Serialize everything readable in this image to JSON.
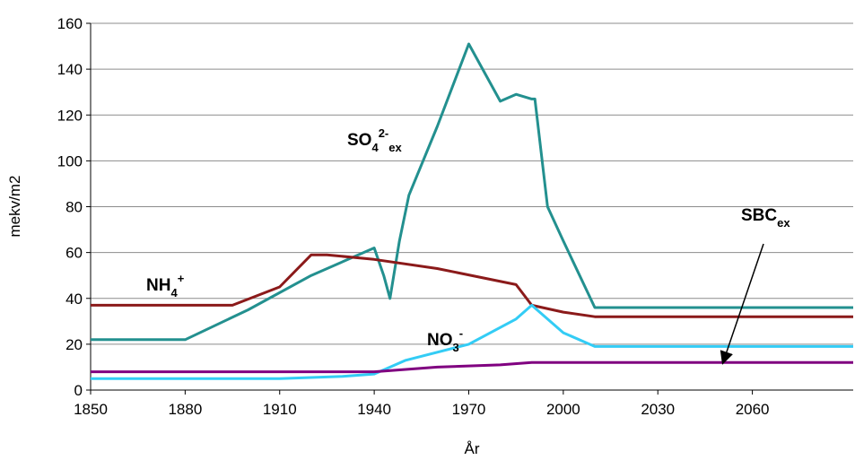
{
  "chart_data": {
    "type": "line",
    "ylabel": "mekv/m2",
    "xlabel": "År",
    "xlim": [
      1850,
      2092
    ],
    "ylim": [
      0,
      160
    ],
    "xticks": [
      1850,
      1880,
      1910,
      1940,
      1970,
      2000,
      2030,
      2060
    ],
    "yticks": [
      0,
      20,
      40,
      60,
      80,
      100,
      120,
      140,
      160
    ],
    "grid": true,
    "series": [
      {
        "label_parts": [
          {
            "text": "SO"
          },
          {
            "text": "4",
            "style": "sub"
          },
          {
            "text": "2-",
            "style": "sup"
          },
          {
            "text": "ex",
            "style": "sub"
          }
        ],
        "color": "#23908f",
        "x": [
          1850,
          1880,
          1900,
          1920,
          1940,
          1943,
          1945,
          1948,
          1951,
          1960,
          1970,
          1980,
          1985,
          1990,
          1991,
          1995,
          2000,
          2010,
          2092
        ],
        "values": [
          22,
          22,
          35,
          50,
          62,
          50,
          40,
          65,
          85,
          115,
          151,
          126,
          129,
          127,
          127,
          80,
          65,
          36,
          36
        ]
      },
      {
        "label_parts": [
          {
            "text": "NH"
          },
          {
            "text": "4",
            "style": "sub"
          },
          {
            "text": "+",
            "style": "sup"
          }
        ],
        "color": "#8b1a1a",
        "x": [
          1850,
          1895,
          1910,
          1920,
          1925,
          1940,
          1960,
          1985,
          1990,
          2000,
          2010,
          2092
        ],
        "values": [
          37,
          37,
          45,
          59,
          59,
          57,
          53,
          46,
          37,
          34,
          32,
          32
        ]
      },
      {
        "label_parts": [
          {
            "text": "NO"
          },
          {
            "text": "3",
            "style": "sub"
          },
          {
            "text": "-",
            "style": "sup"
          }
        ],
        "color": "#33ccf5",
        "x": [
          1850,
          1910,
          1930,
          1940,
          1950,
          1970,
          1985,
          1990,
          2000,
          2010,
          2092
        ],
        "values": [
          5,
          5,
          6,
          7,
          13,
          20,
          31,
          37,
          25,
          19,
          19
        ]
      },
      {
        "label_parts": [
          {
            "text": "SBC"
          },
          {
            "text": "ex",
            "style": "sub"
          }
        ],
        "color": "#800080",
        "x": [
          1850,
          1940,
          1960,
          1980,
          1990,
          2092
        ],
        "values": [
          8,
          8,
          10,
          11,
          12,
          12
        ]
      }
    ]
  }
}
